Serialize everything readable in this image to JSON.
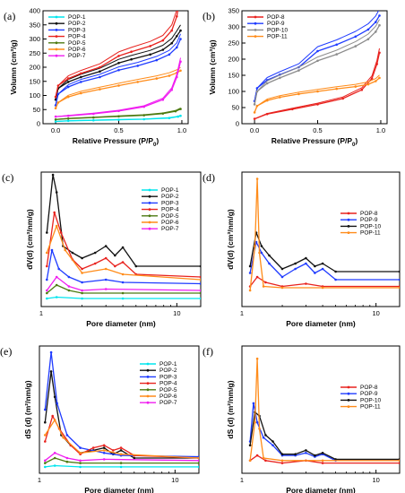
{
  "chart_data": [
    {
      "id": "a",
      "panel_label": "(a)",
      "type": "line",
      "xlabel": "Relative Pressure (P/P",
      "xlabel_sub": "0",
      "xlabel_end": ")",
      "ylabel": "Volumn (cm³/g)",
      "xlim": [
        -0.1,
        1.05
      ],
      "ylim": [
        0,
        400
      ],
      "xticks": [
        0.0,
        0.5,
        1.0
      ],
      "xtick_labels": [
        "0.0",
        "0.5",
        "1.0"
      ],
      "yticks": [
        0,
        50,
        100,
        150,
        200,
        250,
        300,
        350,
        400
      ],
      "legend_position": "top-left",
      "series": [
        {
          "name": "POP-1",
          "color": "#00e5ee",
          "x": [
            0.0,
            0.1,
            0.3,
            0.5,
            0.7,
            0.9,
            0.97,
            0.99
          ],
          "y": [
            8,
            10,
            12,
            14,
            16,
            20,
            25,
            28
          ]
        },
        {
          "name": "POP-2",
          "color": "#111111",
          "x": [
            0.0,
            0.02,
            0.1,
            0.2,
            0.35,
            0.5,
            0.6,
            0.75,
            0.85,
            0.92,
            0.96,
            0.99
          ],
          "y": [
            85,
            125,
            148,
            165,
            185,
            215,
            228,
            245,
            262,
            285,
            310,
            330
          ]
        },
        {
          "name": "POP-3",
          "color": "#1f3bff",
          "x": [
            0.0,
            0.02,
            0.1,
            0.2,
            0.35,
            0.5,
            0.65,
            0.8,
            0.9,
            0.96,
            0.99
          ],
          "y": [
            65,
            105,
            130,
            148,
            165,
            190,
            205,
            225,
            245,
            270,
            300
          ]
        },
        {
          "name": "POP-4",
          "color": "#e8221e",
          "x": [
            0.0,
            0.02,
            0.1,
            0.2,
            0.35,
            0.5,
            0.6,
            0.75,
            0.85,
            0.92,
            0.96,
            0.99
          ],
          "y": [
            95,
            135,
            160,
            178,
            200,
            240,
            255,
            275,
            295,
            330,
            380,
            455
          ]
        },
        {
          "name": "POP-5",
          "color": "#4c7a10",
          "x": [
            0.0,
            0.1,
            0.3,
            0.5,
            0.7,
            0.85,
            0.95,
            0.99
          ],
          "y": [
            15,
            18,
            22,
            26,
            30,
            36,
            44,
            52
          ]
        },
        {
          "name": "POP-6",
          "color": "#ff8c1a",
          "x": [
            0.0,
            0.02,
            0.1,
            0.2,
            0.35,
            0.5,
            0.65,
            0.8,
            0.9,
            0.96,
            0.99
          ],
          "y": [
            55,
            75,
            95,
            108,
            122,
            135,
            148,
            160,
            170,
            180,
            188
          ]
        },
        {
          "name": "POP-7",
          "color": "#f01df0",
          "x": [
            0.0,
            0.1,
            0.3,
            0.5,
            0.7,
            0.85,
            0.92,
            0.96,
            0.99
          ],
          "y": [
            25,
            28,
            35,
            45,
            60,
            85,
            120,
            165,
            220
          ]
        }
      ]
    },
    {
      "id": "b",
      "panel_label": "(b)",
      "type": "line",
      "xlabel": "Relative Pressure (P/P",
      "xlabel_sub": "0",
      "xlabel_end": ")",
      "ylabel": "Volumn (cm³/g)",
      "xlim": [
        -0.1,
        1.05
      ],
      "ylim": [
        0,
        350
      ],
      "xticks": [
        0.0,
        0.5,
        1.0
      ],
      "xtick_labels": [
        "0.0",
        "0.5",
        "1.0"
      ],
      "yticks": [
        0,
        50,
        100,
        150,
        200,
        250,
        300,
        350
      ],
      "legend_position": "top-left",
      "series": [
        {
          "name": "POP-8",
          "color": "#e8221e",
          "x": [
            0.0,
            0.1,
            0.3,
            0.5,
            0.7,
            0.85,
            0.93,
            0.97,
            0.99
          ],
          "y": [
            15,
            30,
            45,
            60,
            78,
            105,
            140,
            185,
            220
          ]
        },
        {
          "name": "POP-9",
          "color": "#1f3bff",
          "x": [
            0.0,
            0.02,
            0.1,
            0.2,
            0.35,
            0.5,
            0.65,
            0.8,
            0.9,
            0.96,
            0.99
          ],
          "y": [
            70,
            110,
            135,
            152,
            175,
            225,
            245,
            270,
            292,
            315,
            335
          ]
        },
        {
          "name": "POP-10",
          "color": "#8c8c8c",
          "x": [
            0.0,
            0.02,
            0.1,
            0.2,
            0.35,
            0.5,
            0.65,
            0.8,
            0.9,
            0.96,
            0.99
          ],
          "y": [
            60,
            100,
            125,
            142,
            165,
            195,
            215,
            240,
            262,
            285,
            305
          ]
        },
        {
          "name": "POP-11",
          "color": "#ff8c1a",
          "x": [
            0.0,
            0.02,
            0.1,
            0.2,
            0.35,
            0.5,
            0.65,
            0.8,
            0.9,
            0.96,
            0.99
          ],
          "y": [
            35,
            55,
            72,
            82,
            92,
            100,
            108,
            115,
            122,
            132,
            142
          ]
        }
      ]
    },
    {
      "id": "c",
      "panel_label": "(c)",
      "type": "line",
      "xlabel": "Pore diameter (nm)",
      "ylabel": "dV(d) (cm³/nm/g)",
      "xscale": "log",
      "xlim": [
        1,
        15
      ],
      "ylim": [
        0,
        1
      ],
      "xticks": [
        1,
        10
      ],
      "xtick_labels": [
        "1",
        "10"
      ],
      "legend_position": "top-right",
      "series": [
        {
          "name": "POP-1",
          "color": "#00e5ee",
          "x": [
            1.1,
            1.3,
            2,
            4,
            15
          ],
          "y": [
            0.06,
            0.07,
            0.06,
            0.06,
            0.06
          ]
        },
        {
          "name": "POP-2",
          "color": "#111111",
          "x": [
            1.1,
            1.22,
            1.3,
            1.45,
            1.7,
            2.0,
            2.5,
            3.0,
            3.5,
            4.0,
            5.0,
            15
          ],
          "y": [
            0.55,
            0.98,
            0.85,
            0.45,
            0.4,
            0.36,
            0.4,
            0.45,
            0.38,
            0.44,
            0.3,
            0.3
          ]
        },
        {
          "name": "POP-3",
          "color": "#1f3bff",
          "x": [
            1.1,
            1.2,
            1.35,
            1.6,
            2.0,
            3.0,
            4.0,
            15
          ],
          "y": [
            0.2,
            0.42,
            0.28,
            0.22,
            0.18,
            0.2,
            0.18,
            0.17
          ]
        },
        {
          "name": "POP-4",
          "color": "#e8221e",
          "x": [
            1.1,
            1.25,
            1.4,
            1.7,
            2.0,
            2.5,
            3.0,
            3.5,
            4.0,
            5.0,
            15
          ],
          "y": [
            0.3,
            0.7,
            0.55,
            0.35,
            0.28,
            0.32,
            0.36,
            0.3,
            0.33,
            0.24,
            0.22
          ]
        },
        {
          "name": "POP-5",
          "color": "#4c7a10",
          "x": [
            1.1,
            1.3,
            1.6,
            2.0,
            4.0,
            15
          ],
          "y": [
            0.1,
            0.16,
            0.12,
            0.1,
            0.1,
            0.1
          ]
        },
        {
          "name": "POP-6",
          "color": "#ff8c1a",
          "x": [
            1.1,
            1.3,
            1.5,
            2.0,
            3.0,
            4.0,
            15
          ],
          "y": [
            0.4,
            0.6,
            0.42,
            0.25,
            0.28,
            0.24,
            0.2
          ]
        },
        {
          "name": "POP-7",
          "color": "#f01df0",
          "x": [
            1.1,
            1.3,
            1.6,
            2.0,
            3.0,
            15
          ],
          "y": [
            0.12,
            0.22,
            0.15,
            0.12,
            0.13,
            0.12
          ]
        }
      ]
    },
    {
      "id": "d",
      "panel_label": "(d)",
      "type": "line",
      "xlabel": "Pore diameter (nm)",
      "ylabel": "dV(d) (cm³/nm/g)",
      "xscale": "log",
      "xlim": [
        1,
        15
      ],
      "ylim": [
        0,
        1
      ],
      "xticks": [
        1,
        10
      ],
      "xtick_labels": [
        "1",
        "10"
      ],
      "legend_position": "right",
      "series": [
        {
          "name": "POP-8",
          "color": "#e8221e",
          "x": [
            1.15,
            1.3,
            1.5,
            2.0,
            3.0,
            4.0,
            15
          ],
          "y": [
            0.15,
            0.22,
            0.18,
            0.15,
            0.17,
            0.15,
            0.15
          ]
        },
        {
          "name": "POP-9",
          "color": "#1f3bff",
          "x": [
            1.15,
            1.28,
            1.4,
            1.6,
            2.0,
            2.5,
            3.0,
            3.5,
            4.0,
            5.0,
            15
          ],
          "y": [
            0.25,
            0.48,
            0.4,
            0.32,
            0.22,
            0.28,
            0.32,
            0.25,
            0.28,
            0.2,
            0.2
          ]
        },
        {
          "name": "POP-10",
          "color": "#111111",
          "x": [
            1.15,
            1.28,
            1.4,
            1.6,
            2.0,
            2.5,
            3.0,
            3.5,
            4.0,
            5.0,
            15
          ],
          "y": [
            0.3,
            0.55,
            0.45,
            0.38,
            0.28,
            0.32,
            0.36,
            0.3,
            0.32,
            0.26,
            0.26
          ]
        },
        {
          "name": "POP-11",
          "color": "#ff8c1a",
          "x": [
            1.15,
            1.25,
            1.3,
            1.35,
            1.45,
            2.0,
            4.0,
            15
          ],
          "y": [
            0.12,
            0.45,
            0.95,
            0.4,
            0.15,
            0.14,
            0.14,
            0.14
          ]
        }
      ]
    },
    {
      "id": "e",
      "panel_label": "(e)",
      "type": "line",
      "xlabel": "Pore diameter (nm)",
      "ylabel": "dS (d) (m²/nm/g)",
      "xscale": "log",
      "xlim": [
        1,
        15
      ],
      "ylim": [
        0,
        1
      ],
      "xticks": [
        1,
        10
      ],
      "xtick_labels": [
        "1",
        "10"
      ],
      "legend_position": "top-right",
      "series": [
        {
          "name": "POP-1",
          "color": "#00e5ee",
          "x": [
            1.1,
            1.3,
            2,
            4,
            15
          ],
          "y": [
            0.05,
            0.06,
            0.05,
            0.05,
            0.05
          ]
        },
        {
          "name": "POP-2",
          "color": "#111111",
          "x": [
            1.1,
            1.22,
            1.3,
            1.45,
            1.7,
            2.0,
            2.5,
            3.0,
            3.5,
            4.0,
            5.0,
            15
          ],
          "y": [
            0.4,
            0.8,
            0.6,
            0.3,
            0.22,
            0.16,
            0.18,
            0.2,
            0.15,
            0.18,
            0.12,
            0.12
          ]
        },
        {
          "name": "POP-3",
          "color": "#1f3bff",
          "x": [
            1.1,
            1.22,
            1.35,
            1.6,
            2.0,
            3.0,
            4.0,
            15
          ],
          "y": [
            0.5,
            0.95,
            0.55,
            0.3,
            0.2,
            0.16,
            0.14,
            0.13
          ]
        },
        {
          "name": "POP-4",
          "color": "#e8221e",
          "x": [
            1.1,
            1.25,
            1.4,
            1.7,
            2.0,
            2.5,
            3.0,
            3.5,
            4.0,
            5.0,
            15
          ],
          "y": [
            0.25,
            0.45,
            0.35,
            0.22,
            0.15,
            0.2,
            0.22,
            0.18,
            0.2,
            0.14,
            0.12
          ]
        },
        {
          "name": "POP-5",
          "color": "#4c7a10",
          "x": [
            1.1,
            1.3,
            1.6,
            2.0,
            4.0,
            15
          ],
          "y": [
            0.08,
            0.12,
            0.09,
            0.08,
            0.08,
            0.08
          ]
        },
        {
          "name": "POP-6",
          "color": "#ff8c1a",
          "x": [
            1.1,
            1.3,
            1.5,
            2.0,
            3.0,
            4.0,
            15
          ],
          "y": [
            0.3,
            0.42,
            0.28,
            0.16,
            0.18,
            0.15,
            0.12
          ]
        },
        {
          "name": "POP-7",
          "color": "#f01df0",
          "x": [
            1.1,
            1.3,
            1.6,
            2.0,
            3.0,
            15
          ],
          "y": [
            0.1,
            0.16,
            0.12,
            0.1,
            0.11,
            0.1
          ]
        }
      ]
    },
    {
      "id": "f",
      "panel_label": "(f)",
      "type": "line",
      "xlabel": "Pore diameter (nm)",
      "ylabel": "dS (d) (m²/nm/g)",
      "xscale": "log",
      "xlim": [
        1,
        15
      ],
      "ylim": [
        0,
        1
      ],
      "xticks": [
        1,
        10
      ],
      "xtick_labels": [
        "1",
        "10"
      ],
      "legend_position": "right",
      "series": [
        {
          "name": "POP-8",
          "color": "#e8221e",
          "x": [
            1.15,
            1.3,
            1.5,
            2.0,
            3.0,
            4.0,
            15
          ],
          "y": [
            0.1,
            0.14,
            0.1,
            0.08,
            0.1,
            0.08,
            0.08
          ]
        },
        {
          "name": "POP-9",
          "color": "#1f3bff",
          "x": [
            1.15,
            1.22,
            1.3,
            1.45,
            1.7,
            2.0,
            2.5,
            3.0,
            3.5,
            4.0,
            5.0,
            15
          ],
          "y": [
            0.25,
            0.55,
            0.4,
            0.28,
            0.22,
            0.14,
            0.14,
            0.16,
            0.13,
            0.15,
            0.1,
            0.1
          ]
        },
        {
          "name": "POP-10",
          "color": "#111111",
          "x": [
            1.15,
            1.25,
            1.35,
            1.5,
            1.7,
            2.0,
            2.5,
            3.0,
            3.5,
            4.0,
            5.0,
            15
          ],
          "y": [
            0.22,
            0.48,
            0.45,
            0.3,
            0.25,
            0.15,
            0.15,
            0.18,
            0.14,
            0.16,
            0.11,
            0.11
          ]
        },
        {
          "name": "POP-11",
          "color": "#ff8c1a",
          "x": [
            1.15,
            1.25,
            1.3,
            1.35,
            1.45,
            2.0,
            4.0,
            15
          ],
          "y": [
            0.1,
            0.4,
            0.9,
            0.35,
            0.12,
            0.1,
            0.1,
            0.1
          ]
        }
      ]
    }
  ]
}
